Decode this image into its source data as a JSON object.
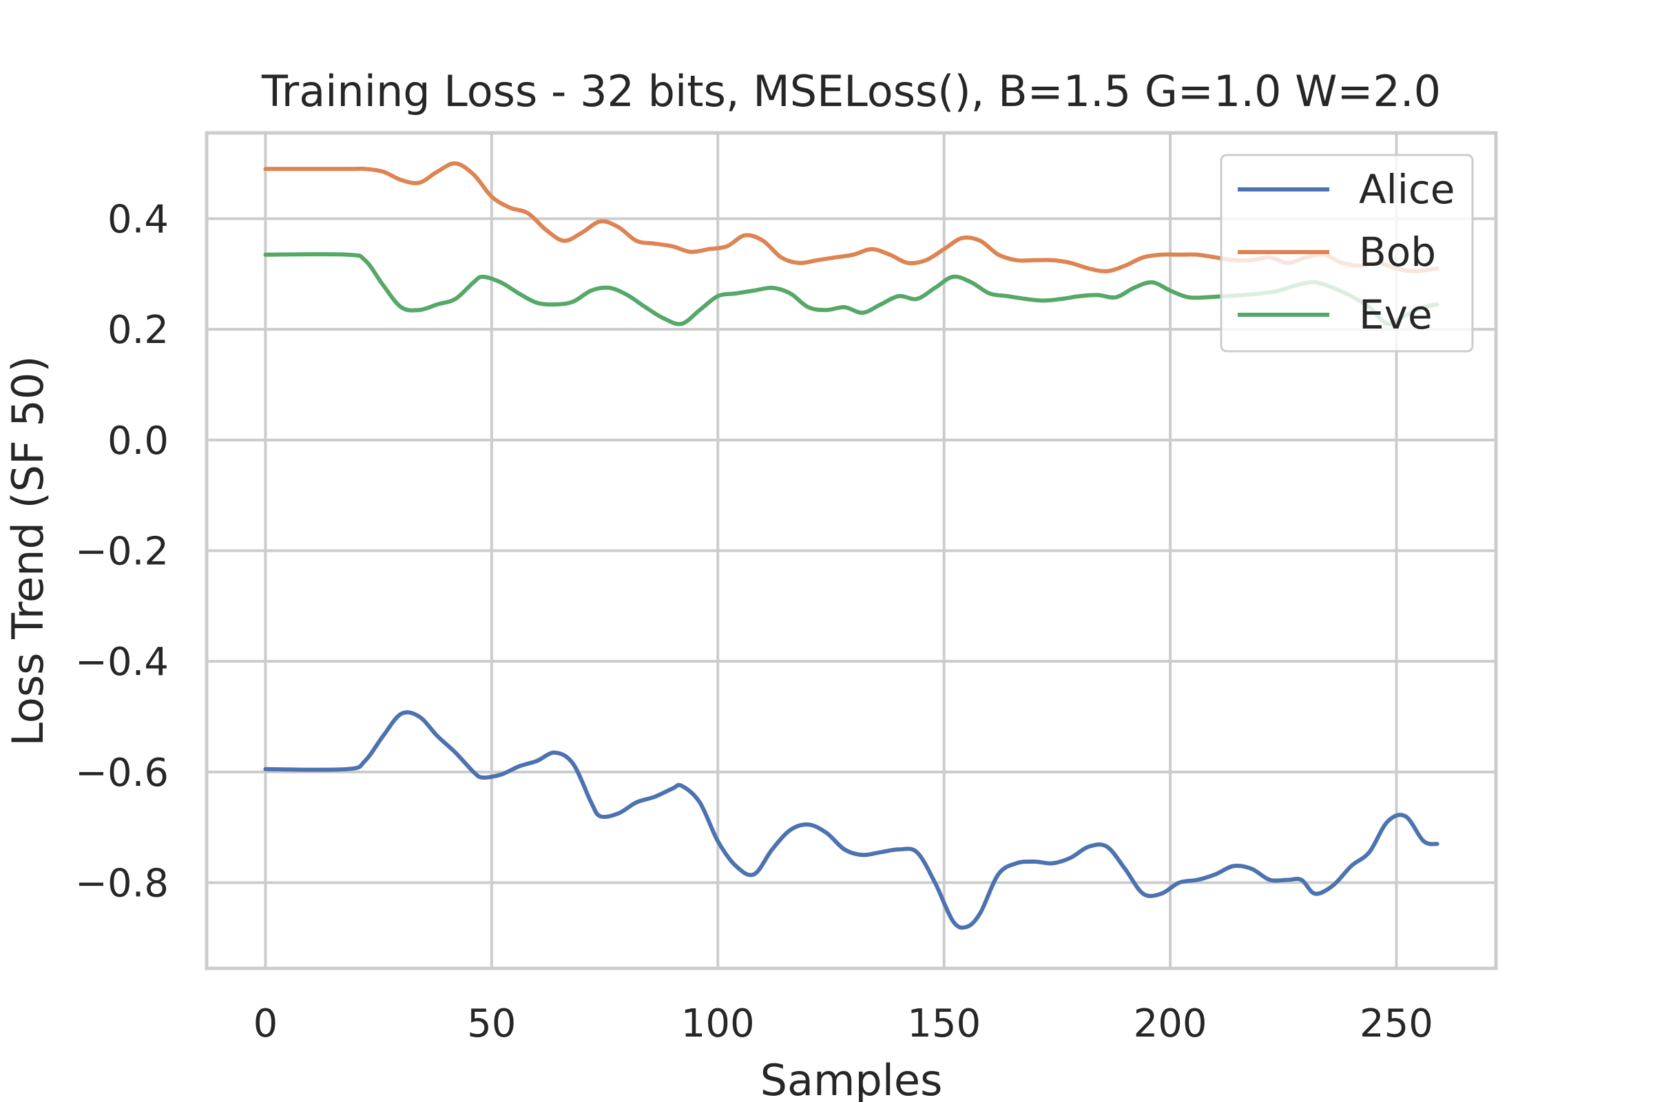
{
  "chart_data": {
    "type": "line",
    "title": "Training Loss - 32 bits, MSELoss(), B=1.5 G=1.0 W=2.0",
    "xlabel": "Samples",
    "ylabel": "Loss Trend (SF 50)",
    "xlim": [
      -13,
      272
    ],
    "ylim": [
      -0.955,
      0.555
    ],
    "xticks": [
      0,
      50,
      100,
      150,
      200,
      250
    ],
    "xtick_labels": [
      "0",
      "50",
      "100",
      "150",
      "200",
      "250"
    ],
    "yticks": [
      0.4,
      0.2,
      0.0,
      -0.2,
      -0.4,
      -0.6,
      -0.8
    ],
    "ytick_labels": [
      "0.4",
      "0.2",
      "0.0",
      "−0.2",
      "−0.4",
      "−0.6",
      "−0.8"
    ],
    "grid": true,
    "legend_position": "top-right",
    "series": [
      {
        "name": "Alice",
        "color": "#4c72b0",
        "x": [
          0,
          18,
          22,
          26,
          30,
          34,
          38,
          42,
          46,
          48,
          52,
          56,
          60,
          64,
          68,
          72,
          74,
          78,
          82,
          86,
          90,
          92,
          96,
          100,
          104,
          108,
          112,
          116,
          120,
          124,
          128,
          132,
          136,
          140,
          144,
          148,
          152,
          155,
          158,
          162,
          166,
          170,
          174,
          178,
          182,
          186,
          190,
          194,
          198,
          202,
          206,
          210,
          214,
          218,
          222,
          226,
          229,
          232,
          236,
          240,
          244,
          248,
          252,
          256,
          259
        ],
        "y": [
          -0.595,
          -0.595,
          -0.58,
          -0.535,
          -0.495,
          -0.5,
          -0.535,
          -0.565,
          -0.6,
          -0.61,
          -0.605,
          -0.59,
          -0.58,
          -0.565,
          -0.585,
          -0.655,
          -0.68,
          -0.675,
          -0.655,
          -0.645,
          -0.63,
          -0.625,
          -0.655,
          -0.725,
          -0.77,
          -0.785,
          -0.74,
          -0.705,
          -0.695,
          -0.71,
          -0.74,
          -0.75,
          -0.745,
          -0.74,
          -0.745,
          -0.8,
          -0.87,
          -0.88,
          -0.855,
          -0.785,
          -0.765,
          -0.762,
          -0.765,
          -0.755,
          -0.735,
          -0.735,
          -0.775,
          -0.82,
          -0.82,
          -0.8,
          -0.795,
          -0.785,
          -0.77,
          -0.775,
          -0.795,
          -0.795,
          -0.795,
          -0.82,
          -0.805,
          -0.77,
          -0.745,
          -0.69,
          -0.68,
          -0.725,
          -0.73
        ]
      },
      {
        "name": "Bob",
        "color": "#dd8452",
        "x": [
          0,
          18,
          22,
          26,
          30,
          34,
          38,
          42,
          46,
          50,
          54,
          58,
          62,
          66,
          70,
          74,
          78,
          82,
          86,
          90,
          94,
          98,
          102,
          106,
          110,
          114,
          118,
          122,
          126,
          130,
          134,
          138,
          142,
          146,
          150,
          154,
          158,
          162,
          166,
          170,
          174,
          178,
          182,
          186,
          190,
          194,
          198,
          202,
          206,
          210,
          214,
          218,
          222,
          226,
          230,
          234,
          238,
          242,
          246,
          250,
          254,
          259
        ],
        "y": [
          0.49,
          0.49,
          0.49,
          0.485,
          0.47,
          0.465,
          0.485,
          0.5,
          0.48,
          0.44,
          0.42,
          0.41,
          0.38,
          0.36,
          0.375,
          0.395,
          0.385,
          0.36,
          0.355,
          0.35,
          0.34,
          0.345,
          0.35,
          0.37,
          0.36,
          0.33,
          0.32,
          0.325,
          0.33,
          0.335,
          0.345,
          0.335,
          0.32,
          0.325,
          0.345,
          0.365,
          0.36,
          0.335,
          0.325,
          0.325,
          0.325,
          0.32,
          0.31,
          0.305,
          0.315,
          0.33,
          0.335,
          0.335,
          0.335,
          0.33,
          0.325,
          0.325,
          0.33,
          0.32,
          0.33,
          0.335,
          0.32,
          0.315,
          0.32,
          0.31,
          0.305,
          0.31
        ]
      },
      {
        "name": "Eve",
        "color": "#55a868",
        "x": [
          0,
          18,
          22,
          26,
          30,
          34,
          38,
          42,
          46,
          48,
          52,
          56,
          60,
          64,
          68,
          72,
          76,
          80,
          84,
          88,
          92,
          96,
          100,
          104,
          108,
          112,
          116,
          120,
          124,
          128,
          132,
          136,
          140,
          144,
          148,
          152,
          156,
          160,
          164,
          168,
          172,
          176,
          180,
          184,
          188,
          192,
          196,
          200,
          204,
          208,
          212,
          216,
          220,
          224,
          228,
          232,
          236,
          240,
          244,
          248,
          252,
          256,
          259
        ],
        "y": [
          0.335,
          0.335,
          0.325,
          0.28,
          0.24,
          0.235,
          0.245,
          0.255,
          0.285,
          0.295,
          0.285,
          0.265,
          0.248,
          0.245,
          0.25,
          0.27,
          0.275,
          0.262,
          0.24,
          0.22,
          0.21,
          0.235,
          0.26,
          0.265,
          0.27,
          0.275,
          0.265,
          0.24,
          0.235,
          0.24,
          0.23,
          0.245,
          0.26,
          0.255,
          0.275,
          0.295,
          0.285,
          0.265,
          0.26,
          0.255,
          0.252,
          0.255,
          0.26,
          0.262,
          0.258,
          0.275,
          0.285,
          0.27,
          0.258,
          0.258,
          0.26,
          0.262,
          0.265,
          0.27,
          0.28,
          0.285,
          0.275,
          0.26,
          0.24,
          0.21,
          0.225,
          0.24,
          0.245
        ]
      }
    ]
  }
}
